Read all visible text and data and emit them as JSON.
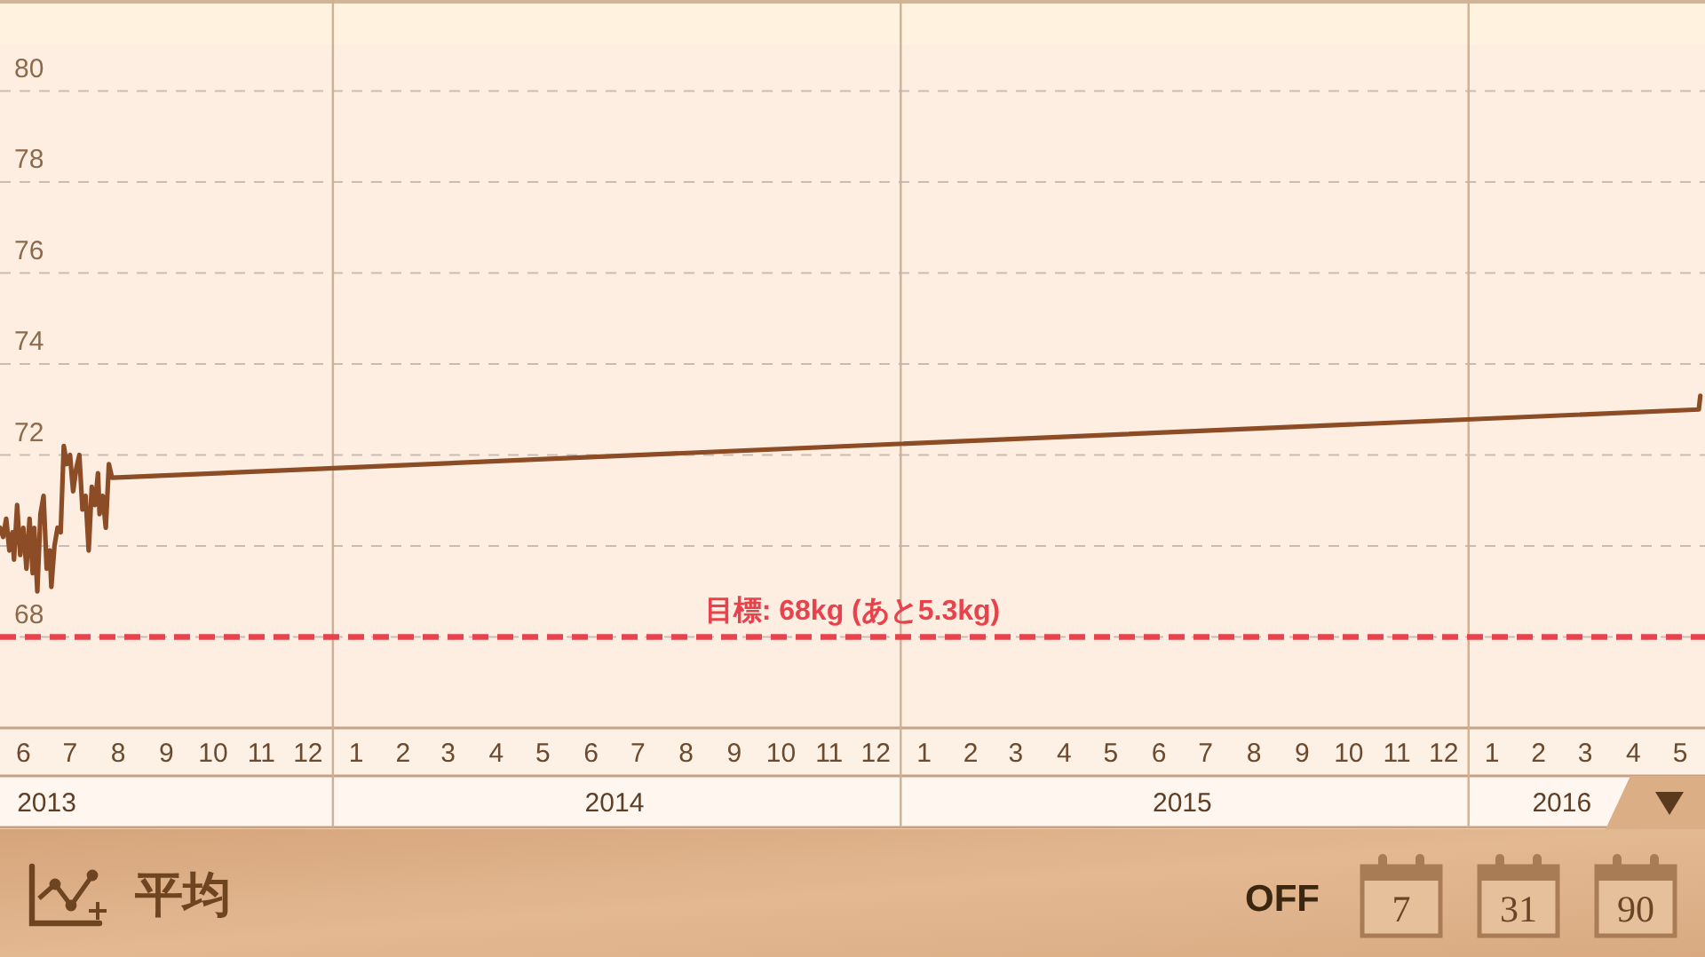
{
  "chart_data": {
    "type": "line",
    "xlim": [
      "2013-06-01",
      "2016-06-01"
    ],
    "xticks": [
      {
        "value": "2013-06-16",
        "label": "6"
      },
      {
        "value": "2013-07-16",
        "label": "7"
      },
      {
        "value": "2013-08-16",
        "label": "8"
      },
      {
        "value": "2013-09-16",
        "label": "9"
      },
      {
        "value": "2013-10-16",
        "label": "10"
      },
      {
        "value": "2013-11-16",
        "label": "11"
      },
      {
        "value": "2013-12-16",
        "label": "12"
      },
      {
        "value": "2014-01-16",
        "label": "1"
      },
      {
        "value": "2014-02-15",
        "label": "2"
      },
      {
        "value": "2014-03-16",
        "label": "3"
      },
      {
        "value": "2014-04-16",
        "label": "4"
      },
      {
        "value": "2014-05-16",
        "label": "5"
      },
      {
        "value": "2014-06-16",
        "label": "6"
      },
      {
        "value": "2014-07-16",
        "label": "7"
      },
      {
        "value": "2014-08-16",
        "label": "8"
      },
      {
        "value": "2014-09-16",
        "label": "9"
      },
      {
        "value": "2014-10-16",
        "label": "10"
      },
      {
        "value": "2014-11-16",
        "label": "11"
      },
      {
        "value": "2014-12-16",
        "label": "12"
      },
      {
        "value": "2015-01-16",
        "label": "1"
      },
      {
        "value": "2015-02-15",
        "label": "2"
      },
      {
        "value": "2015-03-16",
        "label": "3"
      },
      {
        "value": "2015-04-16",
        "label": "4"
      },
      {
        "value": "2015-05-16",
        "label": "5"
      },
      {
        "value": "2015-06-16",
        "label": "6"
      },
      {
        "value": "2015-07-16",
        "label": "7"
      },
      {
        "value": "2015-08-16",
        "label": "8"
      },
      {
        "value": "2015-09-16",
        "label": "9"
      },
      {
        "value": "2015-10-16",
        "label": "10"
      },
      {
        "value": "2015-11-16",
        "label": "11"
      },
      {
        "value": "2015-12-16",
        "label": "12"
      },
      {
        "value": "2016-01-16",
        "label": "1"
      },
      {
        "value": "2016-02-15",
        "label": "2"
      },
      {
        "value": "2016-03-16",
        "label": "3"
      },
      {
        "value": "2016-04-16",
        "label": "4"
      },
      {
        "value": "2016-05-16",
        "label": "5"
      }
    ],
    "x2lim": [
      "2013-06-01",
      "2016-06-01"
    ],
    "x2ticks": [
      {
        "value": "2013-07-01",
        "label": "2013"
      },
      {
        "value": "2014-07-01",
        "label": "2014"
      },
      {
        "value": "2015-07-01",
        "label": "2015"
      },
      {
        "value": "2016-03-01",
        "label": "2016"
      }
    ],
    "ylim": [
      66,
      82
    ],
    "yticks": [
      68,
      {
        "value": 70,
        "label": null
      },
      72,
      74,
      76,
      78,
      80
    ],
    "grid": "y",
    "series": [
      {
        "color": "#8b4c26",
        "x": [
          "2013-06-01",
          "2013-06-03",
          "2013-06-05",
          "2013-06-07",
          "2013-06-09",
          "2013-06-10",
          "2013-06-12",
          "2013-06-14",
          "2013-06-16",
          "2013-06-18",
          "2013-06-20",
          "2013-06-22",
          "2013-06-23",
          "2013-06-25",
          "2013-06-27",
          "2013-06-29",
          "2013-07-01",
          "2013-07-03",
          "2013-07-04",
          "2013-07-06",
          "2013-07-08",
          "2013-07-10",
          "2013-07-12",
          "2013-07-14",
          "2013-07-16",
          "2013-07-18",
          "2013-07-20",
          "2013-07-22",
          "2013-07-24",
          "2013-07-26",
          "2013-07-28",
          "2013-07-30",
          "2013-08-01",
          "2013-08-03",
          "2013-08-04",
          "2013-08-06",
          "2013-08-08",
          "2013-08-10",
          "2013-08-12",
          "2016-05-28",
          "2016-05-29"
        ],
        "values": [
          70.4,
          70.2,
          70.6,
          69.9,
          70.3,
          69.7,
          70.9,
          69.8,
          70.4,
          69.5,
          70.6,
          69.4,
          70.4,
          69.0,
          70.7,
          71.1,
          69.5,
          69.9,
          69.1,
          70.0,
          70.4,
          70.3,
          72.2,
          71.8,
          72.0,
          71.2,
          71.7,
          72.0,
          70.8,
          71.1,
          69.9,
          71.3,
          70.9,
          71.6,
          70.7,
          71.1,
          70.4,
          71.8,
          71.5,
          73.0,
          73.3
        ]
      }
    ],
    "ref_lines": [
      {
        "axis": "y",
        "value": 68,
        "label": "目標: 68kg (あと5.3kg)",
        "color": "#e8434d",
        "line_style": "dashed"
      },
      {
        "axis": "x",
        "value": "2014-01-01",
        "color": "#cdb095"
      },
      {
        "axis": "x",
        "value": "2015-01-01",
        "color": "#cdb095"
      },
      {
        "axis": "x",
        "value": "2016-01-01",
        "color": "#cdb095"
      }
    ],
    "annotations": [
      "平均",
      "OFF",
      "7",
      "31",
      "90"
    ]
  }
}
